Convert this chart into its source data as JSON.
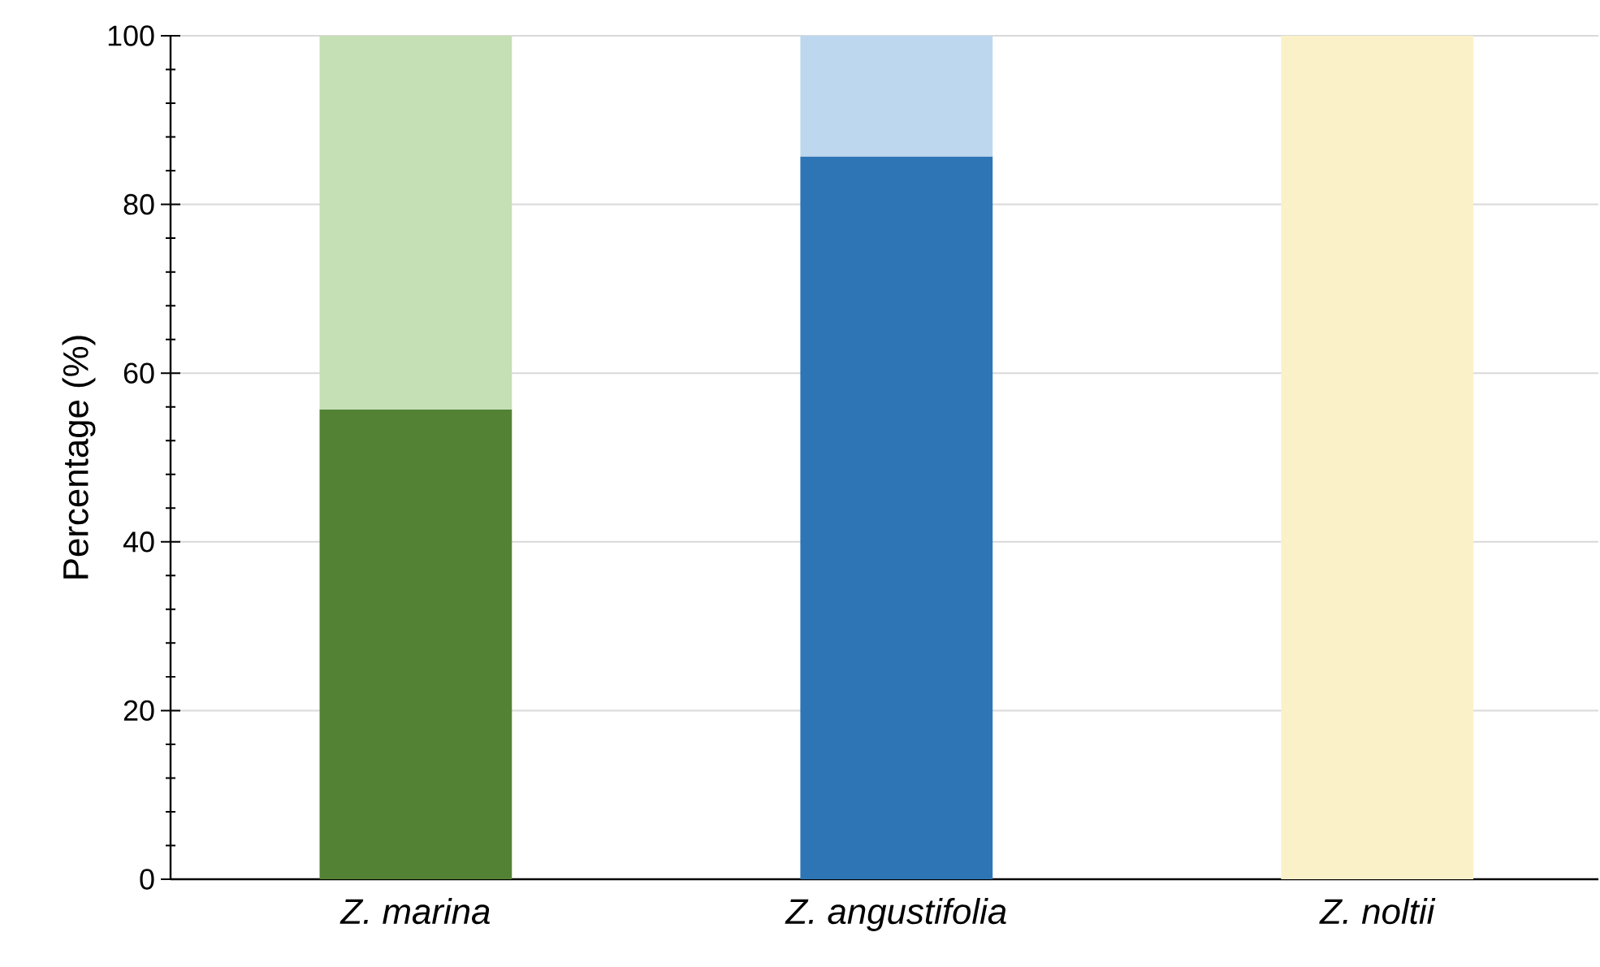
{
  "chart_data": {
    "type": "bar",
    "stacked": true,
    "ylabel": "Percentage (%)",
    "categories": [
      "Z. marina",
      "Z. angustifolia",
      "Z. noltii"
    ],
    "series": [
      {
        "colors": [
          "#548235",
          "#2e75b6",
          "#fbf1c9"
        ],
        "values": [
          55.7,
          85.7,
          0
        ]
      },
      {
        "colors": [
          "#c5e0b4",
          "#bdd7ee",
          "#fbf1c9"
        ],
        "values": [
          44.3,
          14.3,
          100
        ]
      }
    ],
    "ylim": [
      0,
      100
    ],
    "yticks": [
      0,
      20,
      40,
      60,
      80,
      100
    ],
    "grid": "y"
  }
}
